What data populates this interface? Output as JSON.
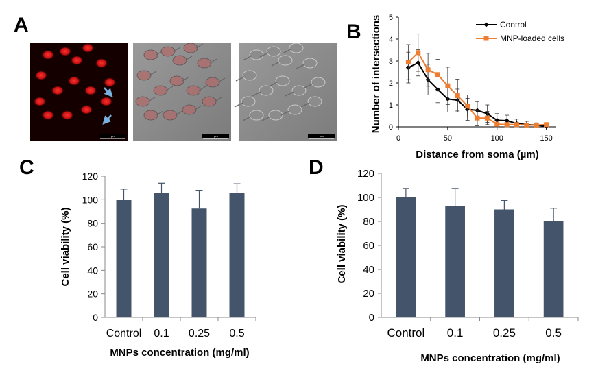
{
  "panels": {
    "a": "A",
    "b": "B",
    "c": "C",
    "d": "D"
  },
  "micrographs": [
    {
      "mode": "fluorescence",
      "scale_text": "µm"
    },
    {
      "mode": "merged",
      "scale_text": "µm"
    },
    {
      "mode": "brightfield",
      "scale_text": "µm"
    }
  ],
  "colors": {
    "control_line": "#000000",
    "mnp_line": "#ed7d31",
    "bar_fill": "#44546a",
    "arrow": "#7ab0e0"
  },
  "chart_data": [
    {
      "id": "B",
      "type": "line",
      "title": "",
      "xlabel": "Distance from soma (µm)",
      "ylabel": "Number of intersections",
      "xlim": [
        0,
        160
      ],
      "ylim": [
        0,
        5
      ],
      "xticks": [
        0,
        50,
        100,
        150
      ],
      "yticks": [
        0,
        1,
        2,
        3,
        4,
        5
      ],
      "legend_position": "top-right",
      "series": [
        {
          "name": "Control",
          "x": [
            10,
            20,
            30,
            40,
            50,
            60,
            70,
            80,
            90,
            100,
            110,
            120,
            130,
            140,
            150
          ],
          "y": [
            2.7,
            2.92,
            2.15,
            1.7,
            1.27,
            1.22,
            0.8,
            0.75,
            0.6,
            0.3,
            0.28,
            0.15,
            0.1,
            0.08,
            0.02
          ],
          "err": [
            0.7,
            0.6,
            0.7,
            0.6,
            0.6,
            0.5,
            0.5,
            0.4,
            0.4,
            0.3,
            0.25,
            0.2,
            0.15,
            0.1,
            0.05
          ]
        },
        {
          "name": "MNP-loaded cells",
          "x": [
            10,
            20,
            30,
            40,
            50,
            60,
            70,
            80,
            90,
            100,
            110,
            120,
            130,
            140,
            150
          ],
          "y": [
            2.95,
            3.38,
            2.6,
            2.38,
            1.87,
            1.42,
            0.95,
            0.4,
            0.4,
            0.12,
            0.1,
            0.1,
            0.08,
            0.08,
            0.1
          ],
          "err": [
            0.8,
            0.85,
            0.75,
            0.7,
            0.85,
            0.75,
            0.5,
            0.35,
            0.3,
            0.15,
            0.1,
            0.1,
            0.08,
            0.08,
            0.08
          ]
        }
      ]
    },
    {
      "id": "C",
      "type": "bar",
      "xlabel": "MNPs concentration (mg/ml)",
      "ylabel": "Cell viability (%)",
      "categories": [
        "Control",
        "0.1",
        "0.25",
        "0.5"
      ],
      "values": [
        100,
        106,
        92.5,
        106
      ],
      "errors": [
        9,
        8,
        15.5,
        7.5
      ],
      "ylim": [
        0,
        120
      ],
      "yticks": [
        0,
        20,
        40,
        60,
        80,
        100,
        120
      ]
    },
    {
      "id": "D",
      "type": "bar",
      "xlabel": "MNPs concentration (mg/ml)",
      "ylabel": "Cell viability (%)",
      "categories": [
        "Control",
        "0.1",
        "0.25",
        "0.5"
      ],
      "values": [
        100,
        93,
        90,
        80
      ],
      "errors": [
        7.5,
        14.5,
        7.5,
        11
      ],
      "ylim": [
        0,
        120
      ],
      "yticks": [
        0,
        20,
        40,
        60,
        80,
        100,
        120
      ]
    }
  ]
}
